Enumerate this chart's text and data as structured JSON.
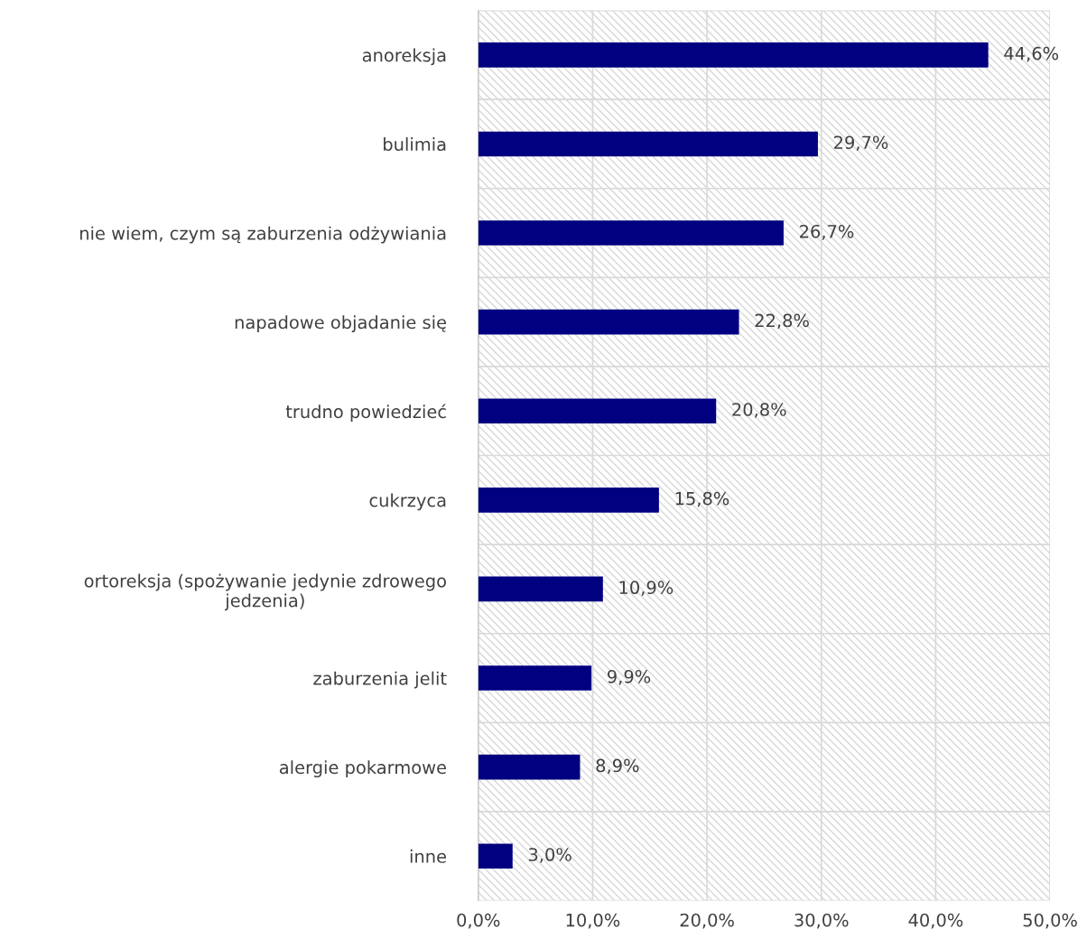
{
  "chart_data": {
    "type": "bar",
    "orientation": "horizontal",
    "categories": [
      "anoreksja",
      "bulimia",
      "nie wiem, czym są zaburzenia odżywiania",
      "napadowe objadanie się",
      "trudno powiedzieć",
      "cukrzyca",
      "ortoreksja (spożywanie jedynie zdrowego\njedzenia)",
      "zaburzenia jelit",
      "alergie pokarmowe",
      "inne"
    ],
    "values": [
      44.6,
      29.7,
      26.7,
      22.8,
      20.8,
      15.8,
      10.9,
      9.9,
      8.9,
      3.0
    ],
    "value_labels": [
      "44,6%",
      "29,7%",
      "26,7%",
      "22,8%",
      "20,8%",
      "15,8%",
      "10,9%",
      "9,9%",
      "8,9%",
      "3,0%"
    ],
    "color": "#000080",
    "xlim": [
      0,
      50
    ],
    "xticks": [
      {
        "value": 0,
        "label": "0,0%"
      },
      {
        "value": 10,
        "label": "10,0%"
      },
      {
        "value": 20,
        "label": "20,0%"
      },
      {
        "value": 30,
        "label": "30,0%"
      },
      {
        "value": 40,
        "label": "40,0%"
      },
      {
        "value": 50,
        "label": "50,0%"
      }
    ],
    "grid": true
  }
}
